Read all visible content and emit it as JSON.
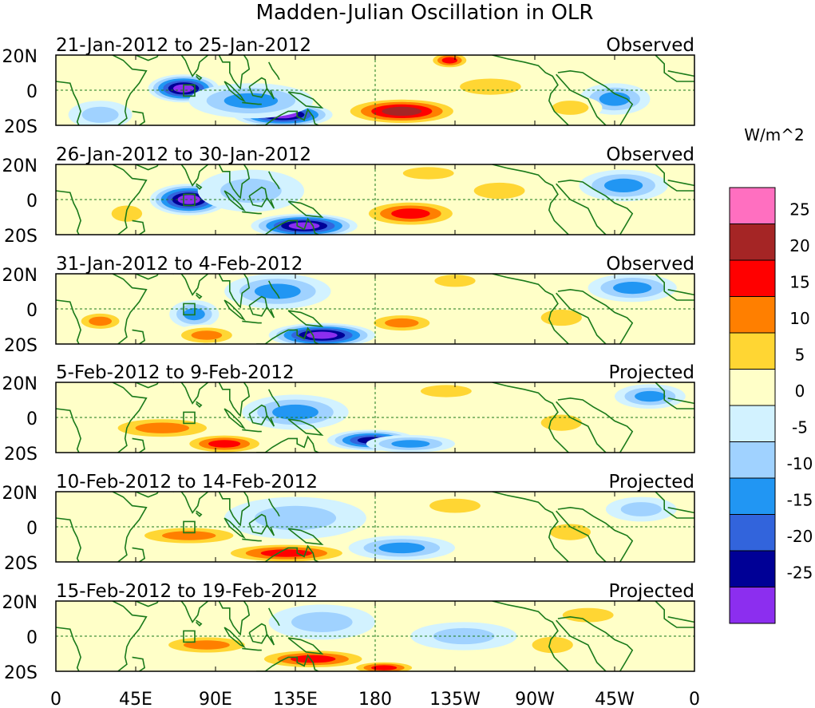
{
  "chart_data": {
    "type": "heatmap",
    "title": "Madden-Julian Oscillation in OLR",
    "units": "W/m^2",
    "x_ticks": [
      "0",
      "45E",
      "90E",
      "135E",
      "180",
      "135W",
      "90W",
      "45W",
      "0"
    ],
    "x_range_deg_east": [
      0,
      360
    ],
    "y_ticks": [
      "20N",
      "0",
      "20S"
    ],
    "y_range_deg": [
      -20,
      20
    ],
    "colorbar": {
      "labels": [
        "25",
        "20",
        "15",
        "10",
        "5",
        "0",
        "-5",
        "-10",
        "-15",
        "-20",
        "-25"
      ],
      "colors": [
        "#ff6fc0",
        "#a52525",
        "#ff0000",
        "#ff7f00",
        "#ffd633",
        "#ffffc8",
        "#d2f2ff",
        "#a0d2ff",
        "#2196f3",
        "#3264dc",
        "#000096",
        "#8c2eef"
      ],
      "min": -30,
      "max": 30,
      "step": 5
    },
    "panels": [
      {
        "period": "21-Jan-2012 to 25-Jan-2012",
        "kind": "Observed",
        "features": [
          {
            "lon": 72,
            "lat": 1,
            "value": -27,
            "rlon": 20,
            "rlat": 8
          },
          {
            "lon": 128,
            "lat": -14,
            "value": -28,
            "rlon": 28,
            "rlat": 7
          },
          {
            "lon": 110,
            "lat": -6,
            "value": -12,
            "rlon": 35,
            "rlat": 10
          },
          {
            "lon": 25,
            "lat": -14,
            "value": -8,
            "rlon": 18,
            "rlat": 8
          },
          {
            "lon": 195,
            "lat": -12,
            "value": 22,
            "rlon": 35,
            "rlat": 8
          },
          {
            "lon": 222,
            "lat": 17,
            "value": 18,
            "rlon": 12,
            "rlat": 5
          },
          {
            "lon": 245,
            "lat": 2,
            "value": 7,
            "rlon": 30,
            "rlat": 8
          },
          {
            "lon": 315,
            "lat": -5,
            "value": -12,
            "rlon": 20,
            "rlat": 9
          },
          {
            "lon": 290,
            "lat": -10,
            "value": 6,
            "rlon": 18,
            "rlat": 7
          }
        ]
      },
      {
        "period": "26-Jan-2012 to 30-Jan-2012",
        "kind": "Observed",
        "features": [
          {
            "lon": 75,
            "lat": 0,
            "value": -26,
            "rlon": 22,
            "rlat": 9
          },
          {
            "lon": 140,
            "lat": -15,
            "value": -28,
            "rlon": 30,
            "rlat": 7
          },
          {
            "lon": 110,
            "lat": 5,
            "value": -8,
            "rlon": 30,
            "rlat": 12
          },
          {
            "lon": 200,
            "lat": -8,
            "value": 18,
            "rlon": 30,
            "rlat": 8
          },
          {
            "lon": 210,
            "lat": 15,
            "value": 8,
            "rlon": 25,
            "rlat": 6
          },
          {
            "lon": 40,
            "lat": -8,
            "value": 6,
            "rlon": 15,
            "rlat": 8
          },
          {
            "lon": 320,
            "lat": 8,
            "value": -12,
            "rlon": 25,
            "rlat": 9
          },
          {
            "lon": 250,
            "lat": 5,
            "value": 7,
            "rlon": 25,
            "rlat": 8
          }
        ]
      },
      {
        "period": "31-Jan-2012 to 4-Feb-2012",
        "kind": "Observed",
        "features": [
          {
            "lon": 150,
            "lat": -15,
            "value": -28,
            "rlon": 30,
            "rlat": 7
          },
          {
            "lon": 125,
            "lat": 10,
            "value": -12,
            "rlon": 30,
            "rlat": 10
          },
          {
            "lon": 78,
            "lat": -3,
            "value": -12,
            "rlon": 14,
            "rlat": 8
          },
          {
            "lon": 25,
            "lat": -7,
            "value": 13,
            "rlon": 15,
            "rlat": 6
          },
          {
            "lon": 85,
            "lat": -15,
            "value": 12,
            "rlon": 20,
            "rlat": 6
          },
          {
            "lon": 195,
            "lat": -8,
            "value": 12,
            "rlon": 22,
            "rlat": 6
          },
          {
            "lon": 225,
            "lat": 16,
            "value": 8,
            "rlon": 20,
            "rlat": 6
          },
          {
            "lon": 325,
            "lat": 12,
            "value": -14,
            "rlon": 25,
            "rlat": 8
          },
          {
            "lon": 285,
            "lat": -5,
            "value": 7,
            "rlon": 20,
            "rlat": 8
          }
        ]
      },
      {
        "period": "5-Feb-2012 to 9-Feb-2012",
        "kind": "Projected",
        "features": [
          {
            "lon": 178,
            "lat": -13,
            "value": -24,
            "rlon": 25,
            "rlat": 6
          },
          {
            "lon": 135,
            "lat": 3,
            "value": -13,
            "rlon": 30,
            "rlat": 10
          },
          {
            "lon": 60,
            "lat": -6,
            "value": 13,
            "rlon": 35,
            "rlat": 7
          },
          {
            "lon": 95,
            "lat": -15,
            "value": 16,
            "rlon": 25,
            "rlat": 6
          },
          {
            "lon": 220,
            "lat": 15,
            "value": 8,
            "rlon": 25,
            "rlat": 6
          },
          {
            "lon": 200,
            "lat": -15,
            "value": -12,
            "rlon": 25,
            "rlat": 5
          },
          {
            "lon": 335,
            "lat": 12,
            "value": -12,
            "rlon": 20,
            "rlat": 7
          },
          {
            "lon": 285,
            "lat": -3,
            "value": 7,
            "rlon": 20,
            "rlat": 8
          }
        ]
      },
      {
        "period": "10-Feb-2012 to 14-Feb-2012",
        "kind": "Projected",
        "features": [
          {
            "lon": 75,
            "lat": -5,
            "value": 13,
            "rlon": 35,
            "rlat": 6
          },
          {
            "lon": 130,
            "lat": -15,
            "value": 17,
            "rlon": 40,
            "rlat": 6
          },
          {
            "lon": 135,
            "lat": 5,
            "value": -9,
            "rlon": 40,
            "rlat": 12
          },
          {
            "lon": 195,
            "lat": -12,
            "value": -10,
            "rlon": 30,
            "rlat": 7
          },
          {
            "lon": 225,
            "lat": 12,
            "value": 7,
            "rlon": 25,
            "rlat": 7
          },
          {
            "lon": 290,
            "lat": -3,
            "value": 6,
            "rlon": 20,
            "rlat": 8
          },
          {
            "lon": 330,
            "lat": 10,
            "value": -6,
            "rlon": 20,
            "rlat": 7
          }
        ]
      },
      {
        "period": "15-Feb-2012 to 19-Feb-2012",
        "kind": "Projected",
        "features": [
          {
            "lon": 85,
            "lat": -5,
            "value": 10,
            "rlon": 30,
            "rlat": 6
          },
          {
            "lon": 145,
            "lat": -13,
            "value": 17,
            "rlon": 35,
            "rlat": 6
          },
          {
            "lon": 185,
            "lat": -18,
            "value": 17,
            "rlon": 20,
            "rlat": 4
          },
          {
            "lon": 150,
            "lat": 8,
            "value": -8,
            "rlon": 30,
            "rlat": 10
          },
          {
            "lon": 230,
            "lat": 0,
            "value": -7,
            "rlon": 30,
            "rlat": 8
          },
          {
            "lon": 300,
            "lat": 12,
            "value": 6,
            "rlon": 25,
            "rlat": 7
          },
          {
            "lon": 280,
            "lat": -5,
            "value": 6,
            "rlon": 20,
            "rlat": 8
          }
        ]
      }
    ]
  }
}
